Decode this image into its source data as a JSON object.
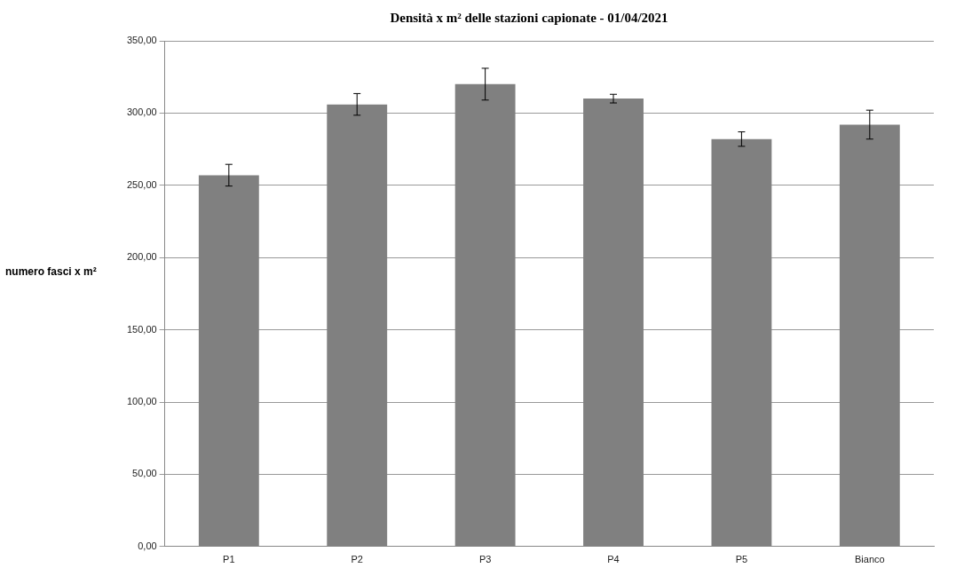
{
  "chart_data": {
    "type": "bar",
    "title": "Densità x m² delle stazioni capionate - 01/04/2021",
    "ylabel": "numero fasci x m²",
    "categories": [
      "P1",
      "P2",
      "P3",
      "P4",
      "P5",
      "Bianco"
    ],
    "values": [
      257,
      306,
      320,
      310,
      282,
      292
    ],
    "errors": [
      7.5,
      7.5,
      11,
      3,
      5,
      10
    ],
    "color": "#808080",
    "ylim": [
      0,
      350
    ],
    "yticks": [
      {
        "value": 0,
        "label": "0,00"
      },
      {
        "value": 50,
        "label": "50,00"
      },
      {
        "value": 100,
        "label": "100,00"
      },
      {
        "value": 150,
        "label": "150,00"
      },
      {
        "value": 200,
        "label": "200,00"
      },
      {
        "value": 250,
        "label": "250,00"
      },
      {
        "value": 300,
        "label": "300,00"
      },
      {
        "value": 350,
        "label": "350,00"
      }
    ],
    "grid": "y"
  }
}
